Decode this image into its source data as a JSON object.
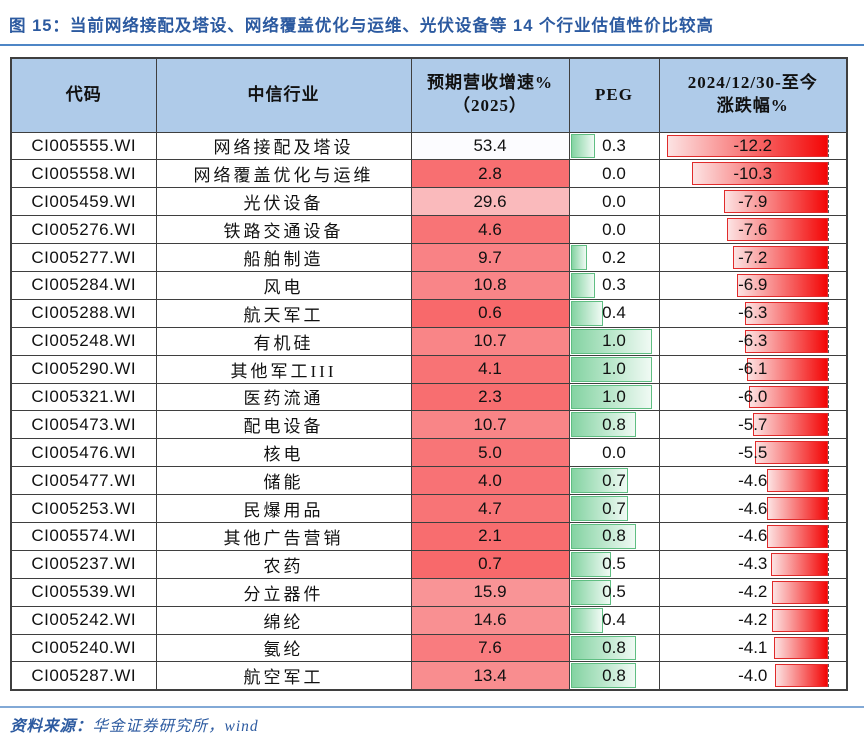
{
  "figure": {
    "title": "图 15：当前网络接配及塔设、网络覆盖优化与运维、光伏设备等 14 个行业估值性价比较高",
    "source_label": "资料来源：",
    "source_text": "华金证券研究所，wind"
  },
  "colors": {
    "title_blue": "#2c5aa0",
    "header_bg": "#afcbe9",
    "grid_border": "#3f3f3f",
    "scale_min_red": "#f8696b",
    "scale_max_white": "#fcfcff",
    "peg_bar_start": "#84d3a2",
    "peg_bar_end": "#f0faf4",
    "peg_bar_border": "#5fbe82",
    "chg_bar_start": "#fce3e3",
    "chg_bar_end": "#f30606",
    "chg_bar_border": "#e02b2b"
  },
  "chart_data": {
    "type": "table",
    "columns": [
      "代码",
      "中信行业",
      "预期营收增速%\n（2025）",
      "PEG",
      "2024/12/30-至今\n涨跌幅%"
    ],
    "column_formats": {
      "growth_scale": "red-to-white color scale, min=lowest value, max=highest value",
      "peg_bar": "green left-anchored data bar, scale 0 to 1.0",
      "change_bar": "red right-anchored negative data bar with dashed axis at right"
    },
    "rows": [
      {
        "code": "CI005555.WI",
        "industry": "网络接配及塔设",
        "growth": 53.4,
        "peg": 0.3,
        "change": -12.2
      },
      {
        "code": "CI005558.WI",
        "industry": "网络覆盖优化与运维",
        "growth": 2.8,
        "peg": 0.0,
        "change": -10.3
      },
      {
        "code": "CI005459.WI",
        "industry": "光伏设备",
        "growth": 29.6,
        "peg": 0.0,
        "change": -7.9
      },
      {
        "code": "CI005276.WI",
        "industry": "铁路交通设备",
        "growth": 4.6,
        "peg": 0.0,
        "change": -7.6
      },
      {
        "code": "CI005277.WI",
        "industry": "船舶制造",
        "growth": 9.7,
        "peg": 0.2,
        "change": -7.2
      },
      {
        "code": "CI005284.WI",
        "industry": "风电",
        "growth": 10.8,
        "peg": 0.3,
        "change": -6.9
      },
      {
        "code": "CI005288.WI",
        "industry": "航天军工",
        "growth": 0.6,
        "peg": 0.4,
        "change": -6.3
      },
      {
        "code": "CI005248.WI",
        "industry": "有机硅",
        "growth": 10.7,
        "peg": 1.0,
        "change": -6.3
      },
      {
        "code": "CI005290.WI",
        "industry": "其他军工III",
        "growth": 4.1,
        "peg": 1.0,
        "change": -6.1
      },
      {
        "code": "CI005321.WI",
        "industry": "医药流通",
        "growth": 2.3,
        "peg": 1.0,
        "change": -6.0
      },
      {
        "code": "CI005473.WI",
        "industry": "配电设备",
        "growth": 10.7,
        "peg": 0.8,
        "change": -5.7
      },
      {
        "code": "CI005476.WI",
        "industry": "核电",
        "growth": 5.0,
        "peg": 0.0,
        "change": -5.5
      },
      {
        "code": "CI005477.WI",
        "industry": "储能",
        "growth": 4.0,
        "peg": 0.7,
        "change": -4.6
      },
      {
        "code": "CI005253.WI",
        "industry": "民爆用品",
        "growth": 4.7,
        "peg": 0.7,
        "change": -4.6
      },
      {
        "code": "CI005574.WI",
        "industry": "其他广告营销",
        "growth": 2.1,
        "peg": 0.8,
        "change": -4.6
      },
      {
        "code": "CI005237.WI",
        "industry": "农药",
        "growth": 0.7,
        "peg": 0.5,
        "change": -4.3
      },
      {
        "code": "CI005539.WI",
        "industry": "分立器件",
        "growth": 15.9,
        "peg": 0.5,
        "change": -4.2
      },
      {
        "code": "CI005242.WI",
        "industry": "绵纶",
        "growth": 14.6,
        "peg": 0.4,
        "change": -4.2
      },
      {
        "code": "CI005240.WI",
        "industry": "氨纶",
        "growth": 7.6,
        "peg": 0.8,
        "change": -4.1
      },
      {
        "code": "CI005287.WI",
        "industry": "航空军工",
        "growth": 13.4,
        "peg": 0.8,
        "change": -4.0
      }
    ]
  }
}
